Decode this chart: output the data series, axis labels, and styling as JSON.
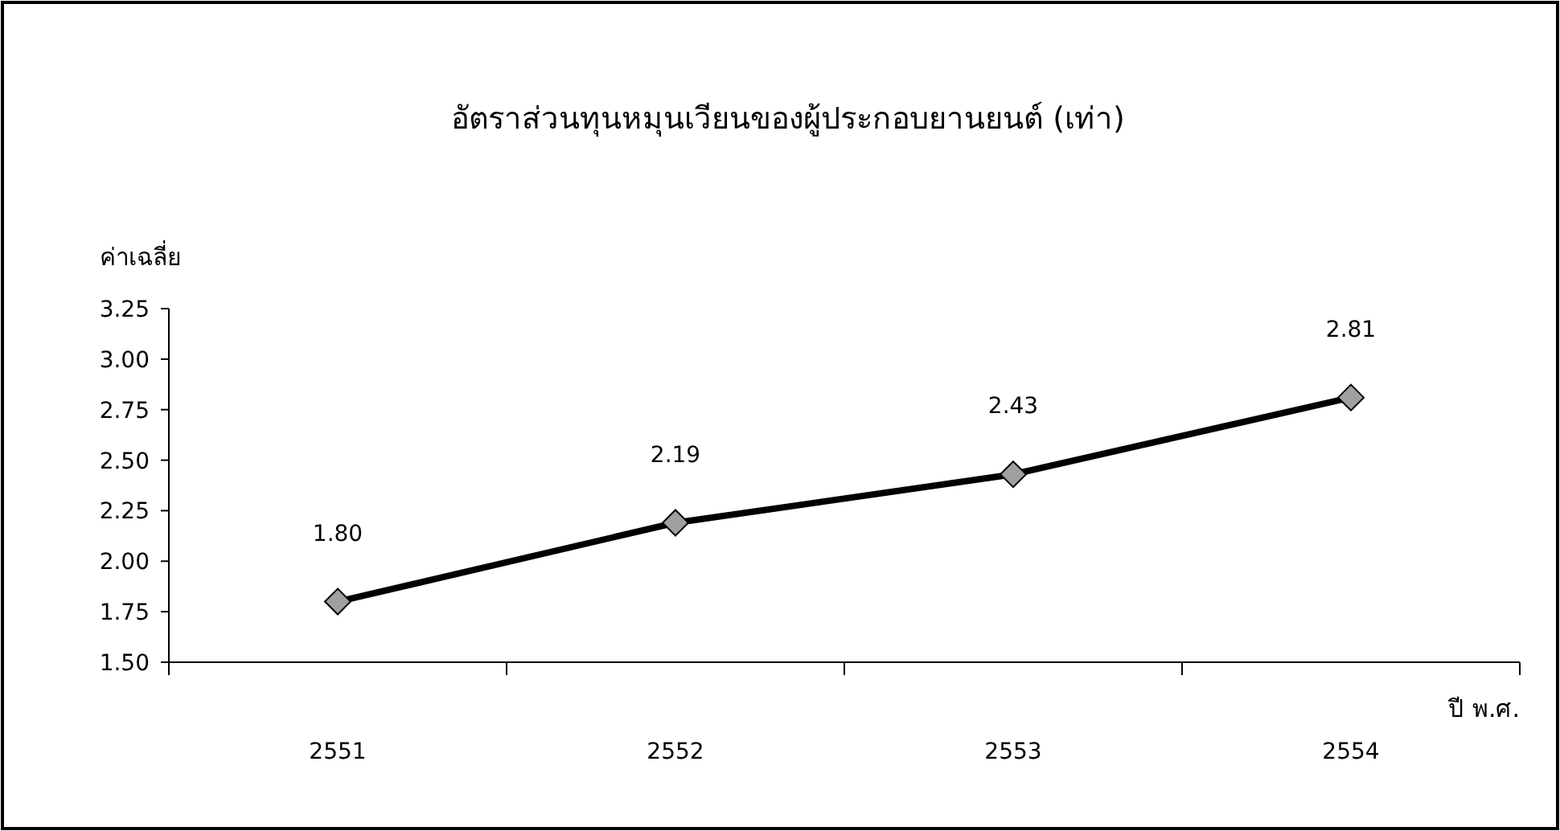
{
  "chart_data": {
    "type": "line",
    "title": "อัตราส่วนทุนหมุนเวียนของผู้ประกอบยานยนต์ (เท่า)",
    "ylabel": "ค่าเฉลี่ย",
    "xlabel": "ปี พ.ศ.",
    "categories": [
      "2551",
      "2552",
      "2553",
      "2554"
    ],
    "series": [
      {
        "color": "#000000",
        "values": [
          1.8,
          2.19,
          2.43,
          2.81
        ],
        "value_labels": [
          "1.80",
          "2.19",
          "2.43",
          "2.81"
        ]
      }
    ],
    "ylim": [
      1.5,
      3.25
    ],
    "yticks": [
      {
        "value": 1.5,
        "label": "1.50"
      },
      {
        "value": 1.75,
        "label": "1.75"
      },
      {
        "value": 2,
        "label": "2.00"
      },
      {
        "value": 2.25,
        "label": "2.25"
      },
      {
        "value": 2.5,
        "label": "2.50"
      },
      {
        "value": 2.75,
        "label": "2.75"
      },
      {
        "value": 3,
        "label": "3.00"
      },
      {
        "value": 3.25,
        "label": "3.25"
      }
    ],
    "marker": "diamond",
    "line_style": "solid",
    "grid": false
  }
}
